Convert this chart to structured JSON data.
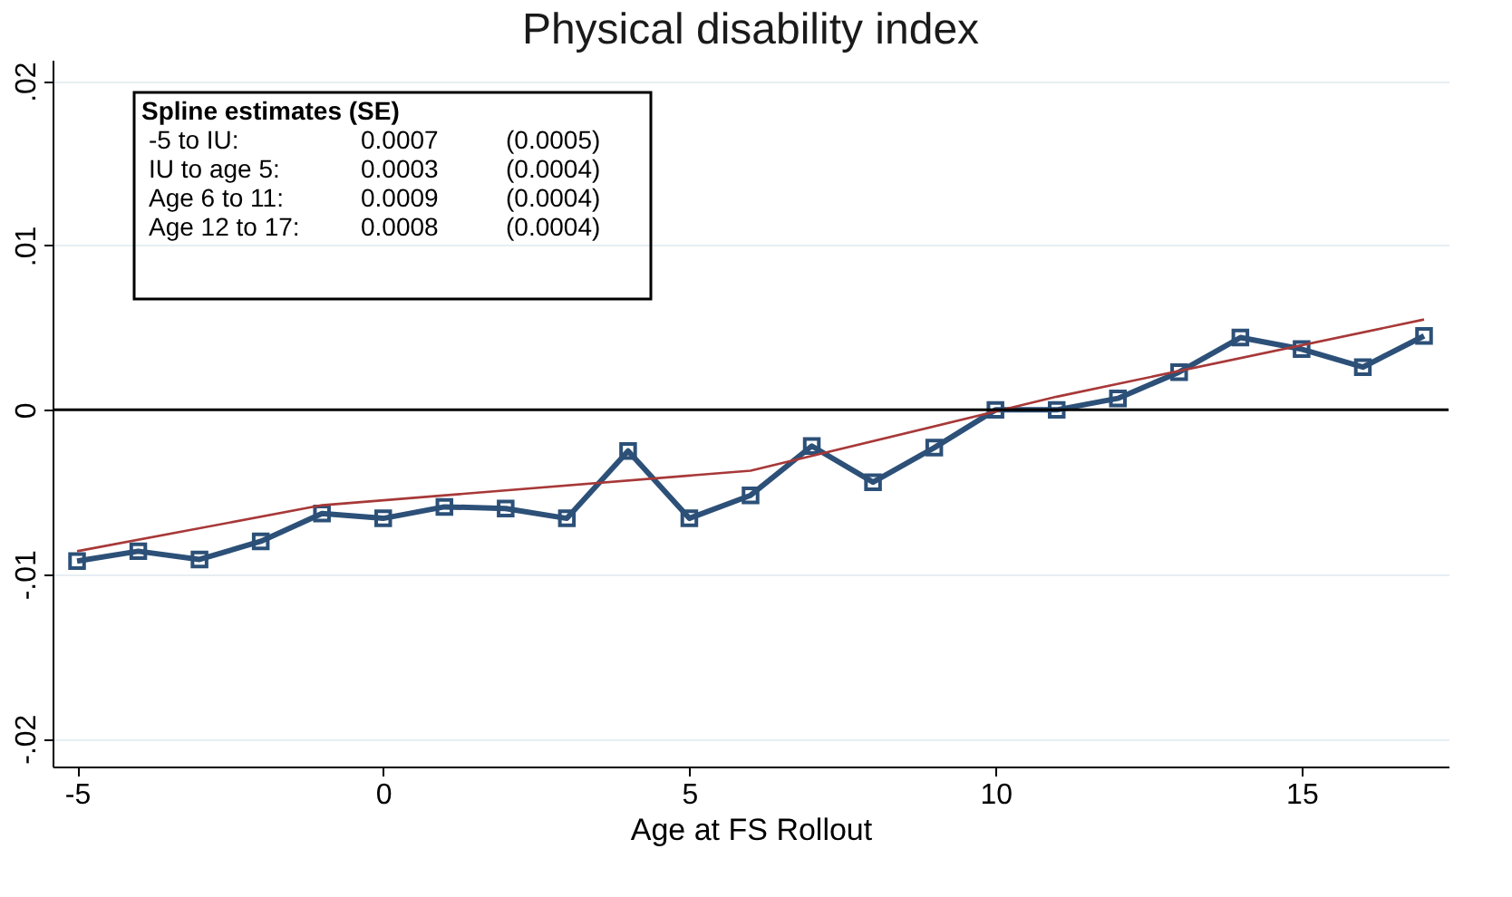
{
  "chart_data": {
    "type": "line",
    "title": "Physical disability index",
    "xlabel": "Age at FS Rollout",
    "x": [
      -5,
      -4,
      -3,
      -2,
      -1,
      0,
      1,
      2,
      3,
      4,
      5,
      6,
      7,
      8,
      9,
      10,
      11,
      12,
      13,
      14,
      15,
      16,
      17
    ],
    "series": [
      {
        "color": "#2c5078",
        "marker": "square",
        "values": [
          -0.0092,
          -0.0086,
          -0.0091,
          -0.008,
          -0.0063,
          -0.0066,
          -0.0059,
          -0.006,
          -0.0066,
          -0.0025,
          -0.0066,
          -0.0052,
          -0.0022,
          -0.0044,
          -0.0023,
          0.0,
          0.0,
          0.0007,
          0.0023,
          0.0044,
          0.0037,
          0.0026,
          0.0045
        ]
      },
      {
        "color": "#a83838",
        "marker": "none",
        "x": [
          -5,
          -1,
          6,
          11,
          17
        ],
        "values": [
          -0.0086,
          -0.0058,
          -0.0037,
          0.0008,
          0.0055
        ]
      }
    ],
    "xlim": [
      -5.4,
      17.4
    ],
    "xticks": [
      -5,
      0,
      5,
      10,
      15
    ],
    "ylim": [
      -0.0217,
      0.0213
    ],
    "yticks": [
      {
        "value": -0.02,
        "label": "-.02"
      },
      {
        "value": -0.01,
        "label": "-.01"
      },
      0,
      {
        "value": 0.01,
        "label": ".01"
      },
      {
        "value": 0.02,
        "label": ".02"
      }
    ],
    "grid": "y",
    "ref_lines": [
      {
        "axis": "y",
        "value": 0,
        "color": "#000000"
      }
    ],
    "annotations": [
      "Spline estimates (SE)",
      "-5 to IU:\t0.0007\t(0.0005)",
      "IU to age 5:\t0.0003\t(0.0004)",
      "Age 6 to 11:\t0.0009\t(0.0004)",
      "Age 12 to 17:\t0.0008\t(0.0004)"
    ]
  }
}
